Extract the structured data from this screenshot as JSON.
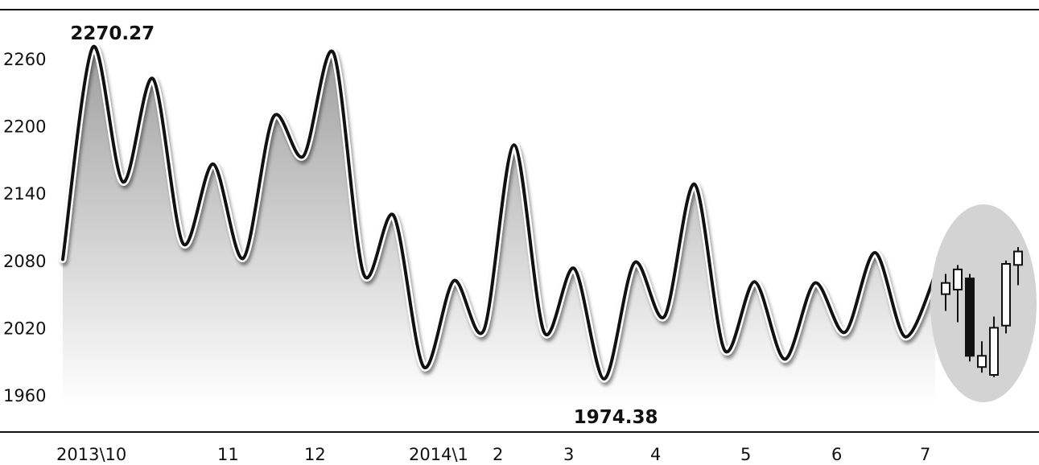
{
  "chart_data": {
    "type": "line",
    "title": "",
    "xlabel": "",
    "ylabel": "",
    "ylim": [
      1945,
      2285
    ],
    "yticks": [
      1960,
      2020,
      2080,
      2140,
      2200,
      2260
    ],
    "xtick_labels": [
      "2013\\10",
      "11",
      "12",
      "2014\\1",
      "2",
      "3",
      "4",
      "5",
      "6",
      "7"
    ],
    "series": [
      {
        "values": [
          2081,
          2270.27,
          2150,
          2242,
          2095,
          2166,
          2082,
          2208,
          2173,
          2265,
          2068,
          2120,
          1985,
          2062,
          2018,
          2183,
          2016,
          2073,
          1974.38,
          2078,
          2030,
          2148,
          2000,
          2061,
          1992,
          2060,
          2016,
          2087,
          2012,
          2067
        ]
      }
    ],
    "annotations": {
      "max_label": "2270.27",
      "min_label": "1974.38"
    },
    "candlesticks": [
      {
        "open": 2050,
        "close": 2060,
        "high": 2068,
        "low": 2035,
        "direction": "up"
      },
      {
        "open": 2054,
        "close": 2072,
        "high": 2076,
        "low": 2025,
        "direction": "up"
      },
      {
        "open": 2064,
        "close": 1995,
        "high": 2068,
        "low": 1990,
        "direction": "down"
      },
      {
        "open": 1985,
        "close": 1995,
        "high": 2008,
        "low": 1980,
        "direction": "up"
      },
      {
        "open": 1978,
        "close": 2020,
        "high": 2030,
        "low": 1976,
        "direction": "up"
      },
      {
        "open": 2022,
        "close": 2077,
        "high": 2080,
        "low": 2015,
        "direction": "up"
      },
      {
        "open": 2076,
        "close": 2088,
        "high": 2092,
        "low": 2058,
        "direction": "up"
      }
    ],
    "grid": false,
    "legend": "none"
  }
}
